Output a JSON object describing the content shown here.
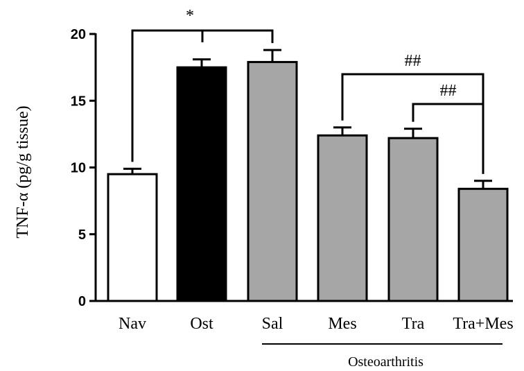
{
  "chart_data": {
    "type": "bar",
    "title": "",
    "xlabel": "",
    "ylabel": "TNF-α (pg/g tissue)",
    "ylim": [
      0,
      20
    ],
    "yticks": [
      0,
      5,
      10,
      15,
      20
    ],
    "categories": [
      "Nav",
      "Ost",
      "Sal",
      "Mes",
      "Tra",
      "Tra+Mes"
    ],
    "values": [
      9.5,
      17.5,
      17.9,
      12.4,
      12.2,
      8.4
    ],
    "errors": [
      0.4,
      0.6,
      0.9,
      0.6,
      0.7,
      0.6
    ],
    "bar_colors": [
      "#ffffff",
      "#000000",
      "#a6a6a6",
      "#a6a6a6",
      "#a6a6a6",
      "#a6a6a6"
    ],
    "group_label": "Osteoarthritis",
    "group_range": [
      "Sal",
      "Tra+Mes"
    ],
    "grid": false,
    "significance": [
      {
        "from": "Nav",
        "to": "Sal",
        "label": "*"
      },
      {
        "from": "Mes",
        "to": "Tra+Mes",
        "label": "##"
      },
      {
        "from": "Tra",
        "to": "Tra+Mes",
        "label": "##"
      }
    ]
  }
}
